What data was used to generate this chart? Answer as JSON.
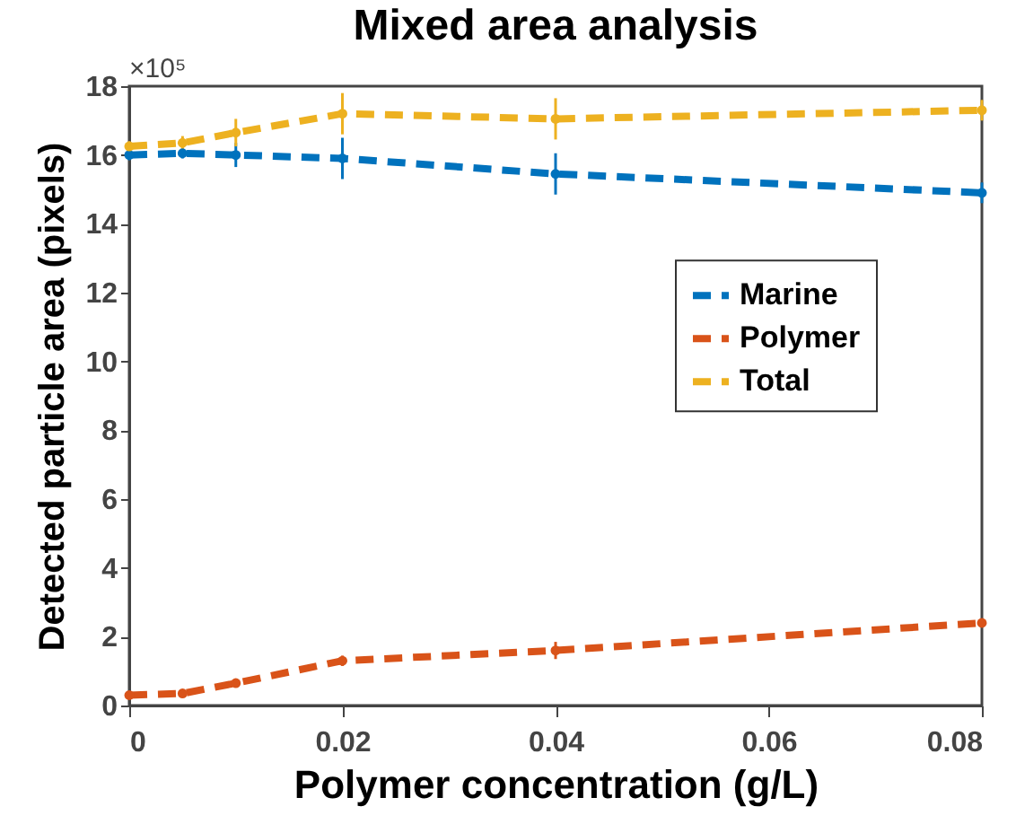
{
  "chart_data": {
    "type": "line",
    "title": "Mixed area analysis",
    "xlabel": "Polymer concentration (g/L)",
    "ylabel": "Detected particle area (pixels)",
    "x": [
      0,
      0.005,
      0.01,
      0.02,
      0.04,
      0.08
    ],
    "series": [
      {
        "name": "Marine",
        "color": "#0072bd",
        "values": [
          16.0,
          16.05,
          16.0,
          15.9,
          15.45,
          14.9
        ],
        "errors": [
          0.15,
          0.15,
          0.35,
          0.6,
          0.6,
          0.3
        ]
      },
      {
        "name": "Polymer",
        "color": "#d95319",
        "values": [
          0.3,
          0.35,
          0.65,
          1.3,
          1.6,
          2.4
        ],
        "errors": [
          0.05,
          0.05,
          0.05,
          0.15,
          0.25,
          0.1
        ]
      },
      {
        "name": "Total",
        "color": "#edb120",
        "values": [
          16.25,
          16.35,
          16.65,
          17.2,
          17.05,
          17.3
        ],
        "errors": [
          0.15,
          0.2,
          0.4,
          0.6,
          0.6,
          0.3
        ]
      }
    ],
    "xlim": [
      0,
      0.08
    ],
    "xticks": [
      0,
      0.02,
      0.04,
      0.06,
      0.08
    ],
    "ylim": [
      0,
      18
    ],
    "yticks": [
      0,
      2,
      4,
      6,
      8,
      10,
      12,
      14,
      16,
      18
    ],
    "annotations": [
      "×10⁵"
    ],
    "legend": "right",
    "marker": "circle",
    "line_style": "dashed",
    "grid": false
  }
}
